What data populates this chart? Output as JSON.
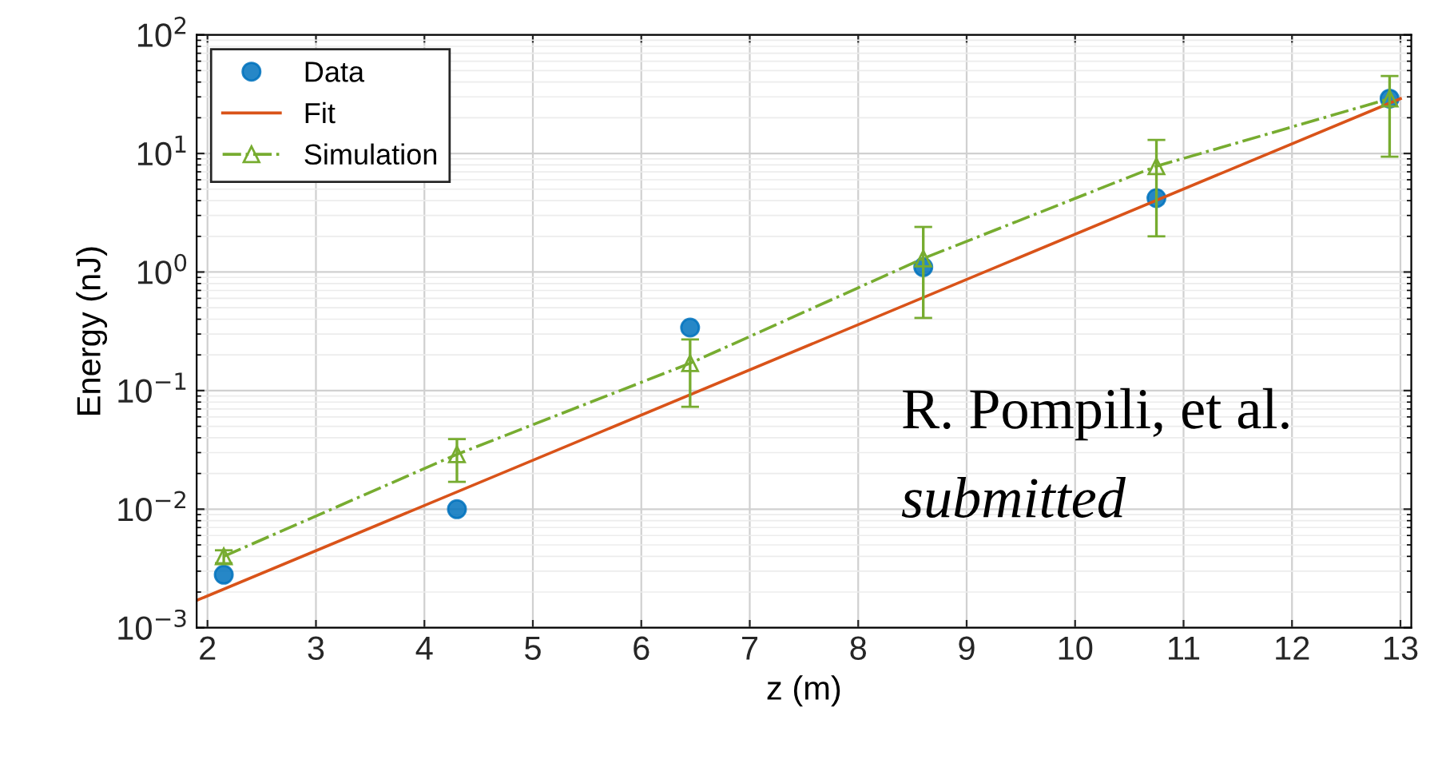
{
  "chart_data": {
    "type": "scatter",
    "xlabel": "z (m)",
    "ylabel": "Energy (nJ)",
    "log": "y",
    "grid": true,
    "legend": "top left",
    "xlim": [
      1.9,
      13.1
    ],
    "xticks": [
      2,
      3,
      4,
      5,
      6,
      7,
      8,
      9,
      10,
      11,
      12,
      13
    ],
    "ylim": [
      0.001,
      100
    ],
    "yticks": [
      {
        "value": 0.001,
        "label": "10$^{−3}$"
      },
      {
        "value": 0.01,
        "label": "10$^{−2}$"
      },
      {
        "value": 0.1,
        "label": "10$^{−1}$"
      },
      {
        "value": 1,
        "label": "10$^{0}$"
      },
      {
        "value": 10,
        "label": "10$^{1}$"
      },
      {
        "value": 100,
        "label": "10$^{2}$"
      }
    ],
    "series": [
      {
        "name": "Data",
        "marker": "circle",
        "color": "#0072bd",
        "x": [
          2.15,
          4.3,
          6.45,
          8.6,
          10.75,
          12.9
        ],
        "values": [
          0.0028,
          0.01,
          0.34,
          1.1,
          4.2,
          29
        ]
      },
      {
        "name": "Fit",
        "type": "line",
        "marker": "none",
        "line_style": "solid",
        "color": "#d95319",
        "x": [
          1.9,
          13
        ],
        "values": [
          0.0017,
          29
        ]
      },
      {
        "name": "Simulation",
        "type": "line",
        "marker": "triangle",
        "line_style": "dashdot",
        "color": "#77ac30",
        "x": [
          2.15,
          4.3,
          6.45,
          8.6,
          10.75,
          12.9
        ],
        "values": [
          0.004,
          0.029,
          0.17,
          1.3,
          7.8,
          29
        ],
        "errors": [
          [
            0.0035,
            0.0045
          ],
          [
            0.017,
            0.039
          ],
          [
            0.073,
            0.27
          ],
          [
            0.41,
            2.4
          ],
          [
            2.0,
            13
          ],
          [
            9.4,
            45
          ]
        ]
      }
    ],
    "annotations": [
      "R. Pompili, et al.",
      "submitted"
    ]
  }
}
